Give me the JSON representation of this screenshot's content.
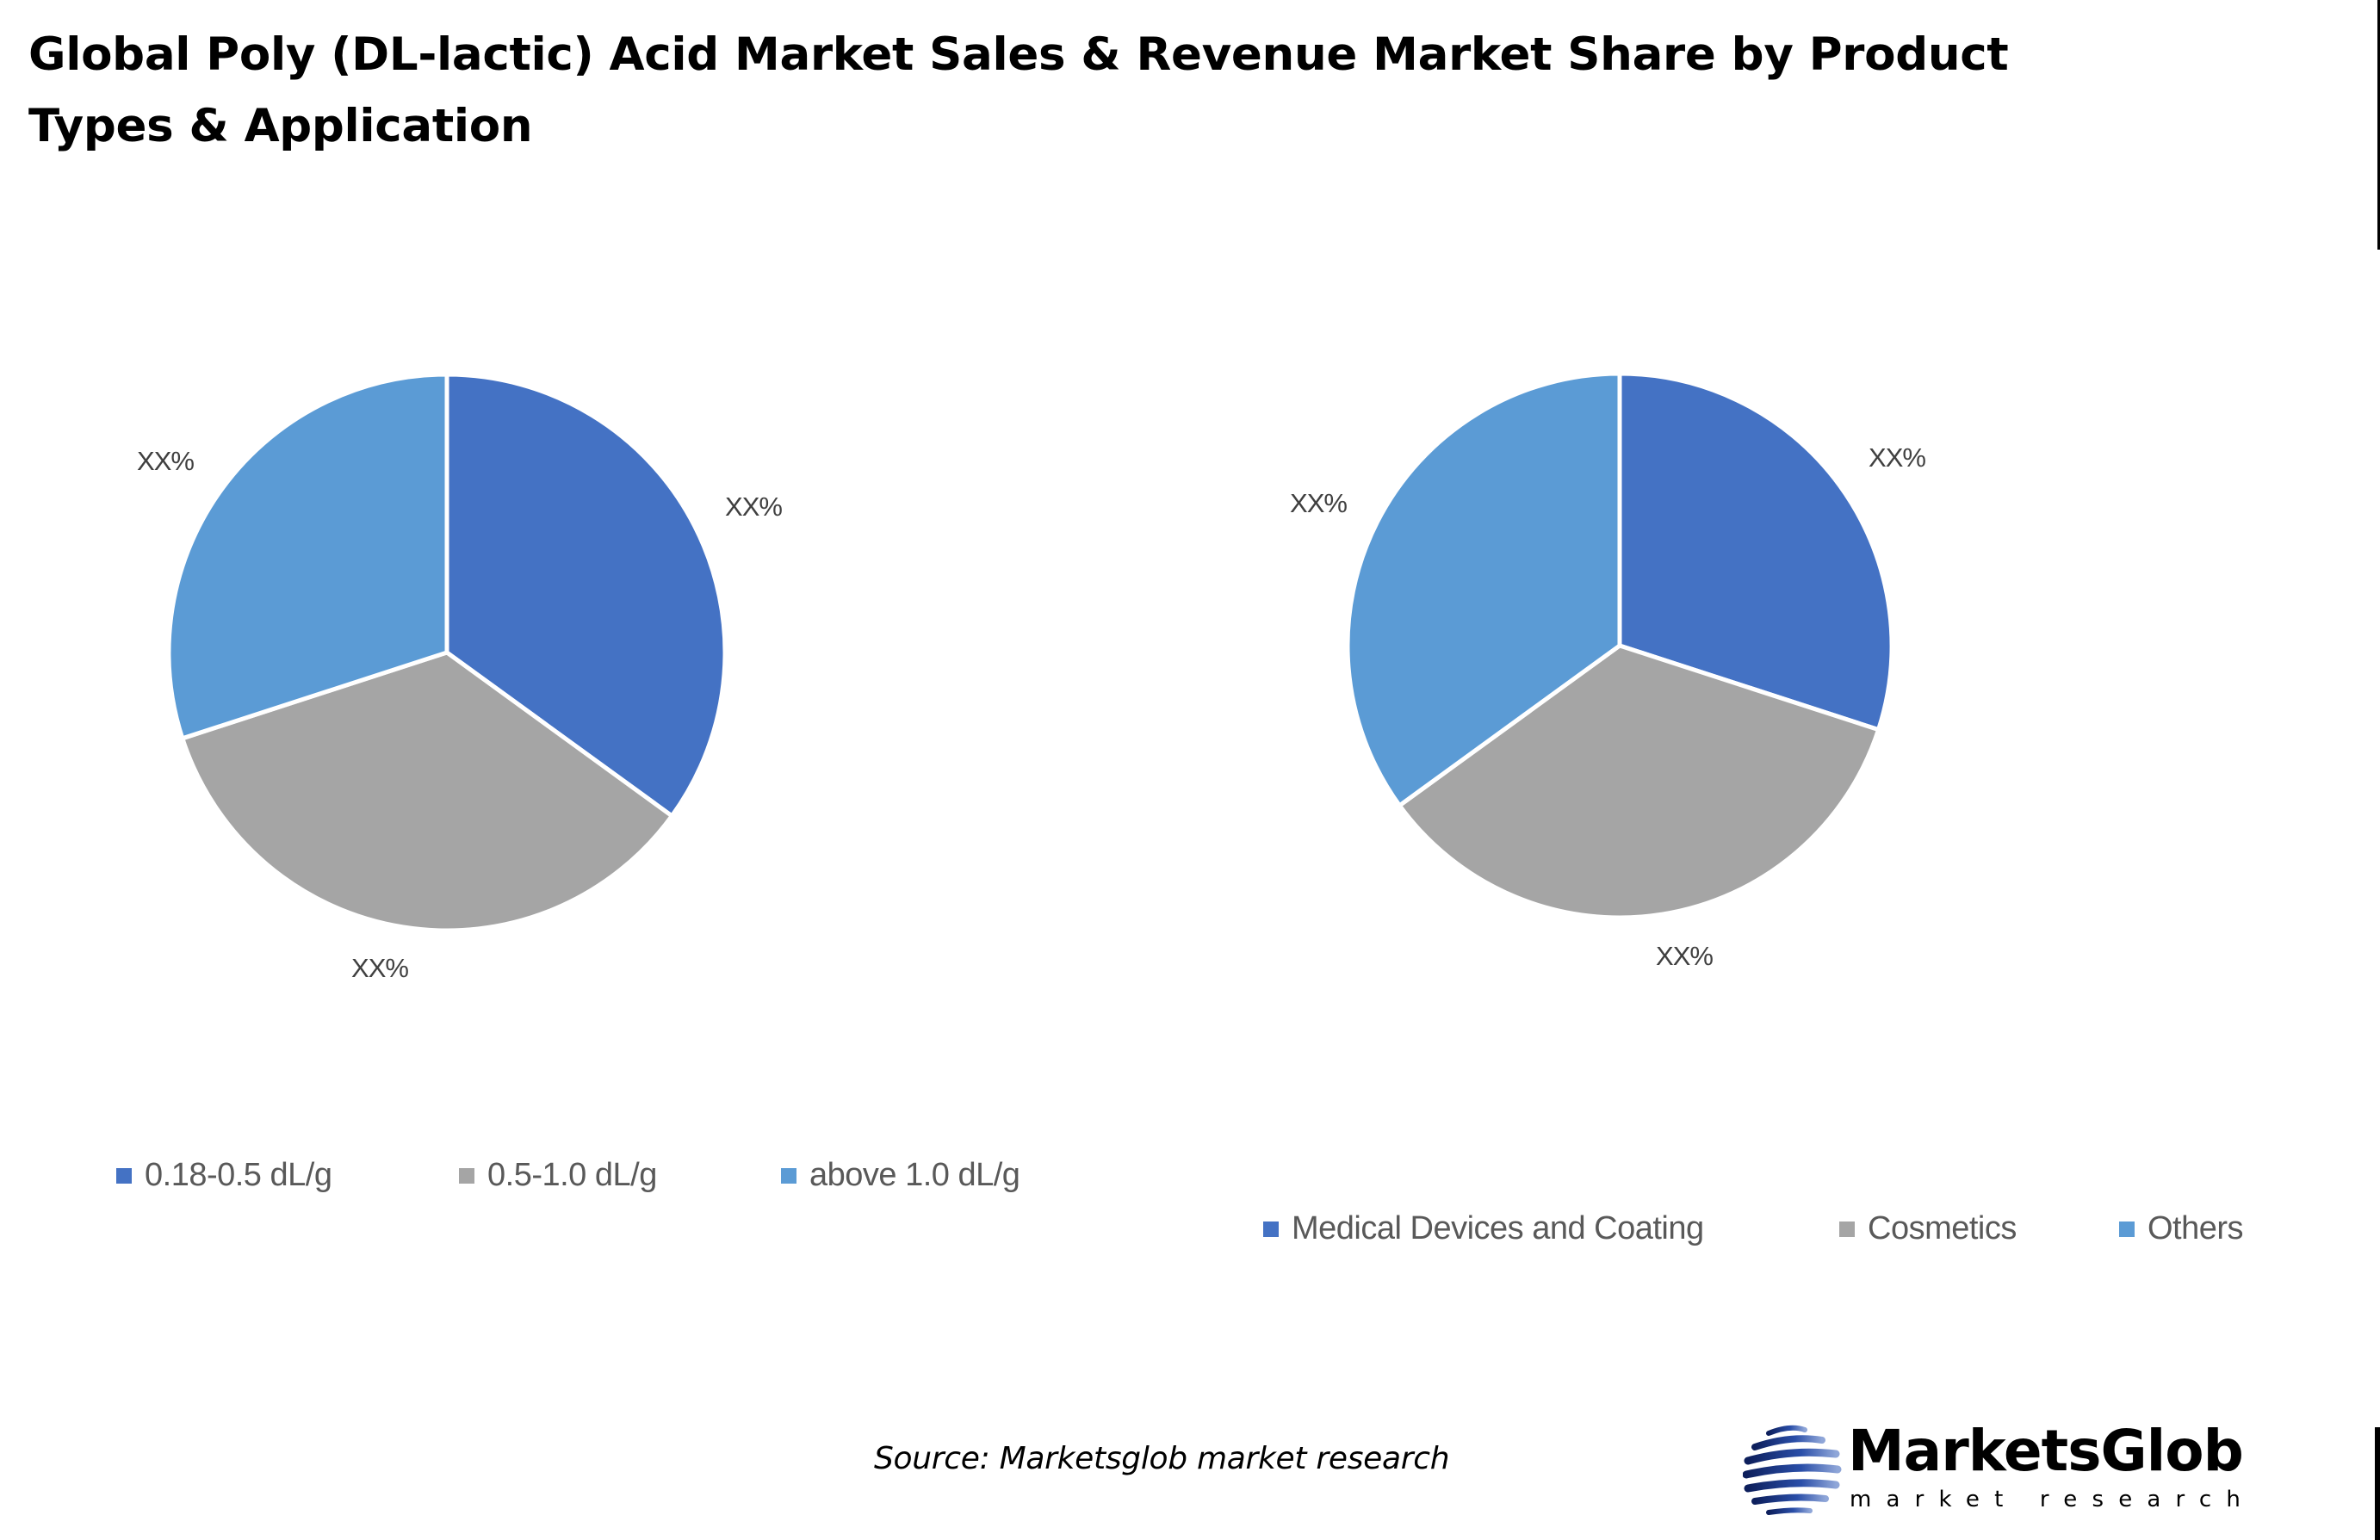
{
  "title": "Global Poly (DL-lactic) Acid Market Sales & Revenue Market Share by Product Types & Application",
  "colors": {
    "series_1": "#4472C4",
    "series_2": "#A5A5A5",
    "series_3": "#5B9BD5"
  },
  "source": "Source: Marketsglob market research",
  "logo": {
    "name": "MarketsGlob",
    "tagline": "market research"
  },
  "chart_data": [
    {
      "type": "pie",
      "title": "Product Types",
      "categories": [
        "0.18-0.5 dL/g",
        "0.5-1.0 dL/g",
        "above 1.0 dL/g"
      ],
      "values": [
        35,
        35,
        30
      ],
      "data_labels": [
        "XX%",
        "XX%",
        "XX%"
      ],
      "colors": [
        "#4472C4",
        "#A5A5A5",
        "#5B9BD5"
      ],
      "start_angle_deg": 0,
      "direction": "clockwise",
      "legend_position": "bottom"
    },
    {
      "type": "pie",
      "title": "Application",
      "categories": [
        "Medical Devices and Coating",
        "Cosmetics",
        "Others"
      ],
      "values": [
        30,
        35,
        35
      ],
      "data_labels": [
        "XX%",
        "XX%",
        "XX%"
      ],
      "colors": [
        "#4472C4",
        "#A5A5A5",
        "#5B9BD5"
      ],
      "start_angle_deg": 0,
      "direction": "clockwise",
      "legend_position": "bottom"
    }
  ]
}
